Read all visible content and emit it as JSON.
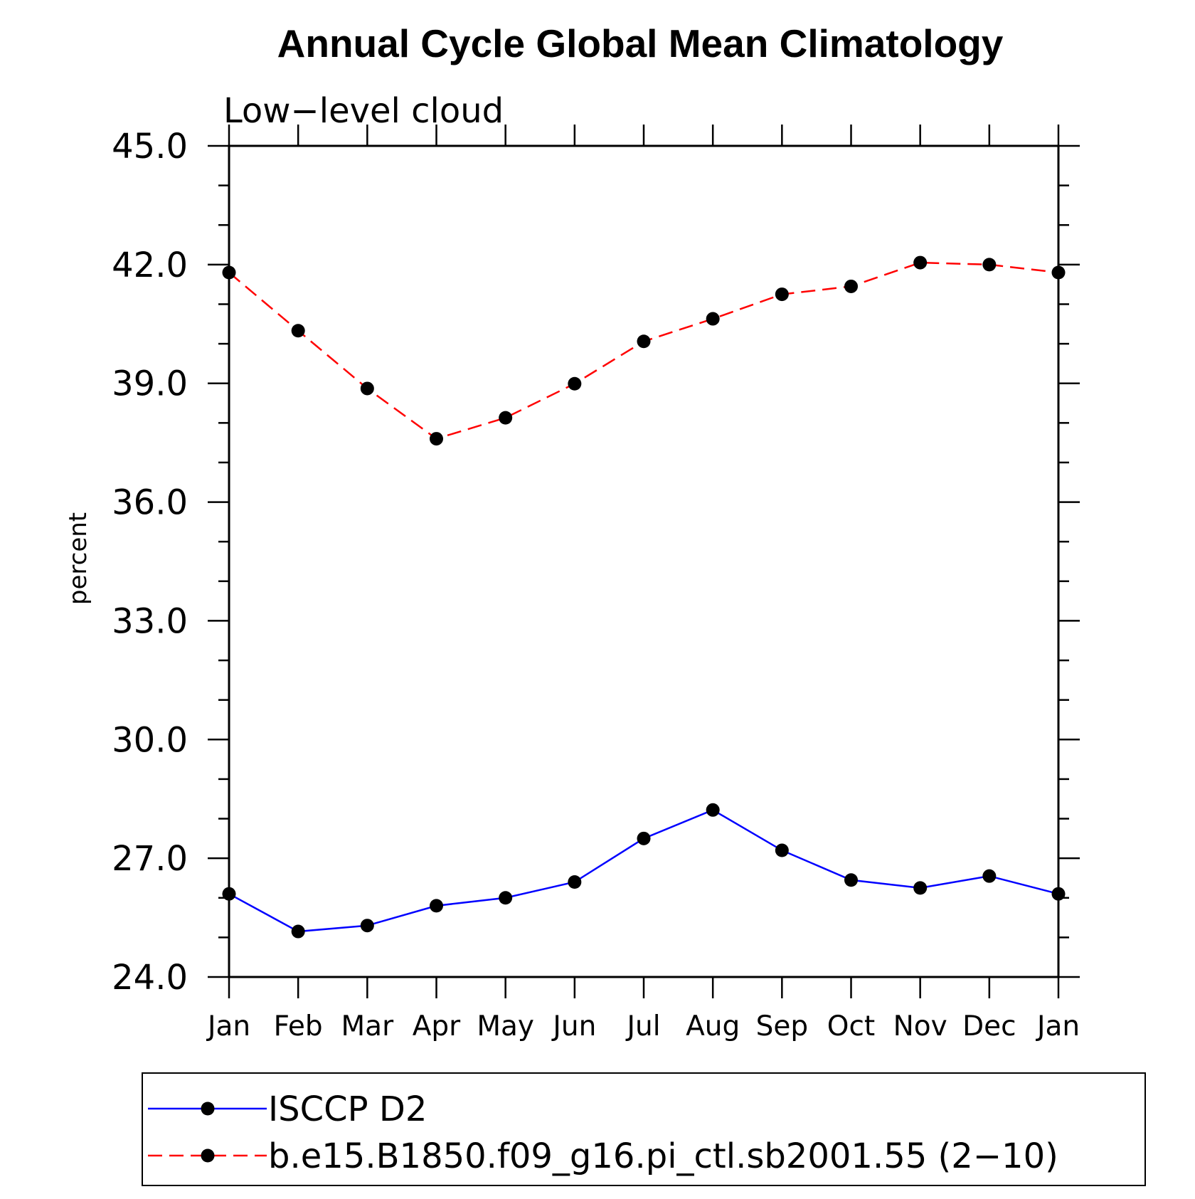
{
  "chart_data": {
    "type": "line",
    "title": "Annual Cycle Global Mean Climatology",
    "subtitle": "Low−level cloud",
    "xlabel": "",
    "ylabel": "percent",
    "categories": [
      "Jan",
      "Feb",
      "Mar",
      "Apr",
      "May",
      "Jun",
      "Jul",
      "Aug",
      "Sep",
      "Oct",
      "Nov",
      "Dec",
      "Jan"
    ],
    "ylim": [
      24.0,
      45.0
    ],
    "yticks": [
      24.0,
      27.0,
      30.0,
      33.0,
      36.0,
      39.0,
      42.0,
      45.0
    ],
    "ytick_labels": [
      "24.0",
      "27.0",
      "30.0",
      "33.0",
      "36.0",
      "39.0",
      "42.0",
      "45.0"
    ],
    "yminor_step": 1.0,
    "grid": false,
    "legend_position": "bottom",
    "series": [
      {
        "name": "ISCCP D2",
        "color": "#0000ff",
        "dash": "solid",
        "marker": "filled-circle",
        "values": [
          26.1,
          25.15,
          25.3,
          25.8,
          26.0,
          26.4,
          27.5,
          28.22,
          27.2,
          26.45,
          26.25,
          26.55,
          26.1
        ]
      },
      {
        "name": "b.e15.B1850.f09_g16.pi_ctl.sb2001.55 (2−10)",
        "color": "#ff0000",
        "dash": "dashed",
        "marker": "filled-circle",
        "values": [
          41.8,
          40.33,
          38.87,
          37.6,
          38.13,
          38.99,
          40.06,
          40.63,
          41.25,
          41.45,
          42.05,
          42.0,
          41.8
        ]
      }
    ]
  }
}
